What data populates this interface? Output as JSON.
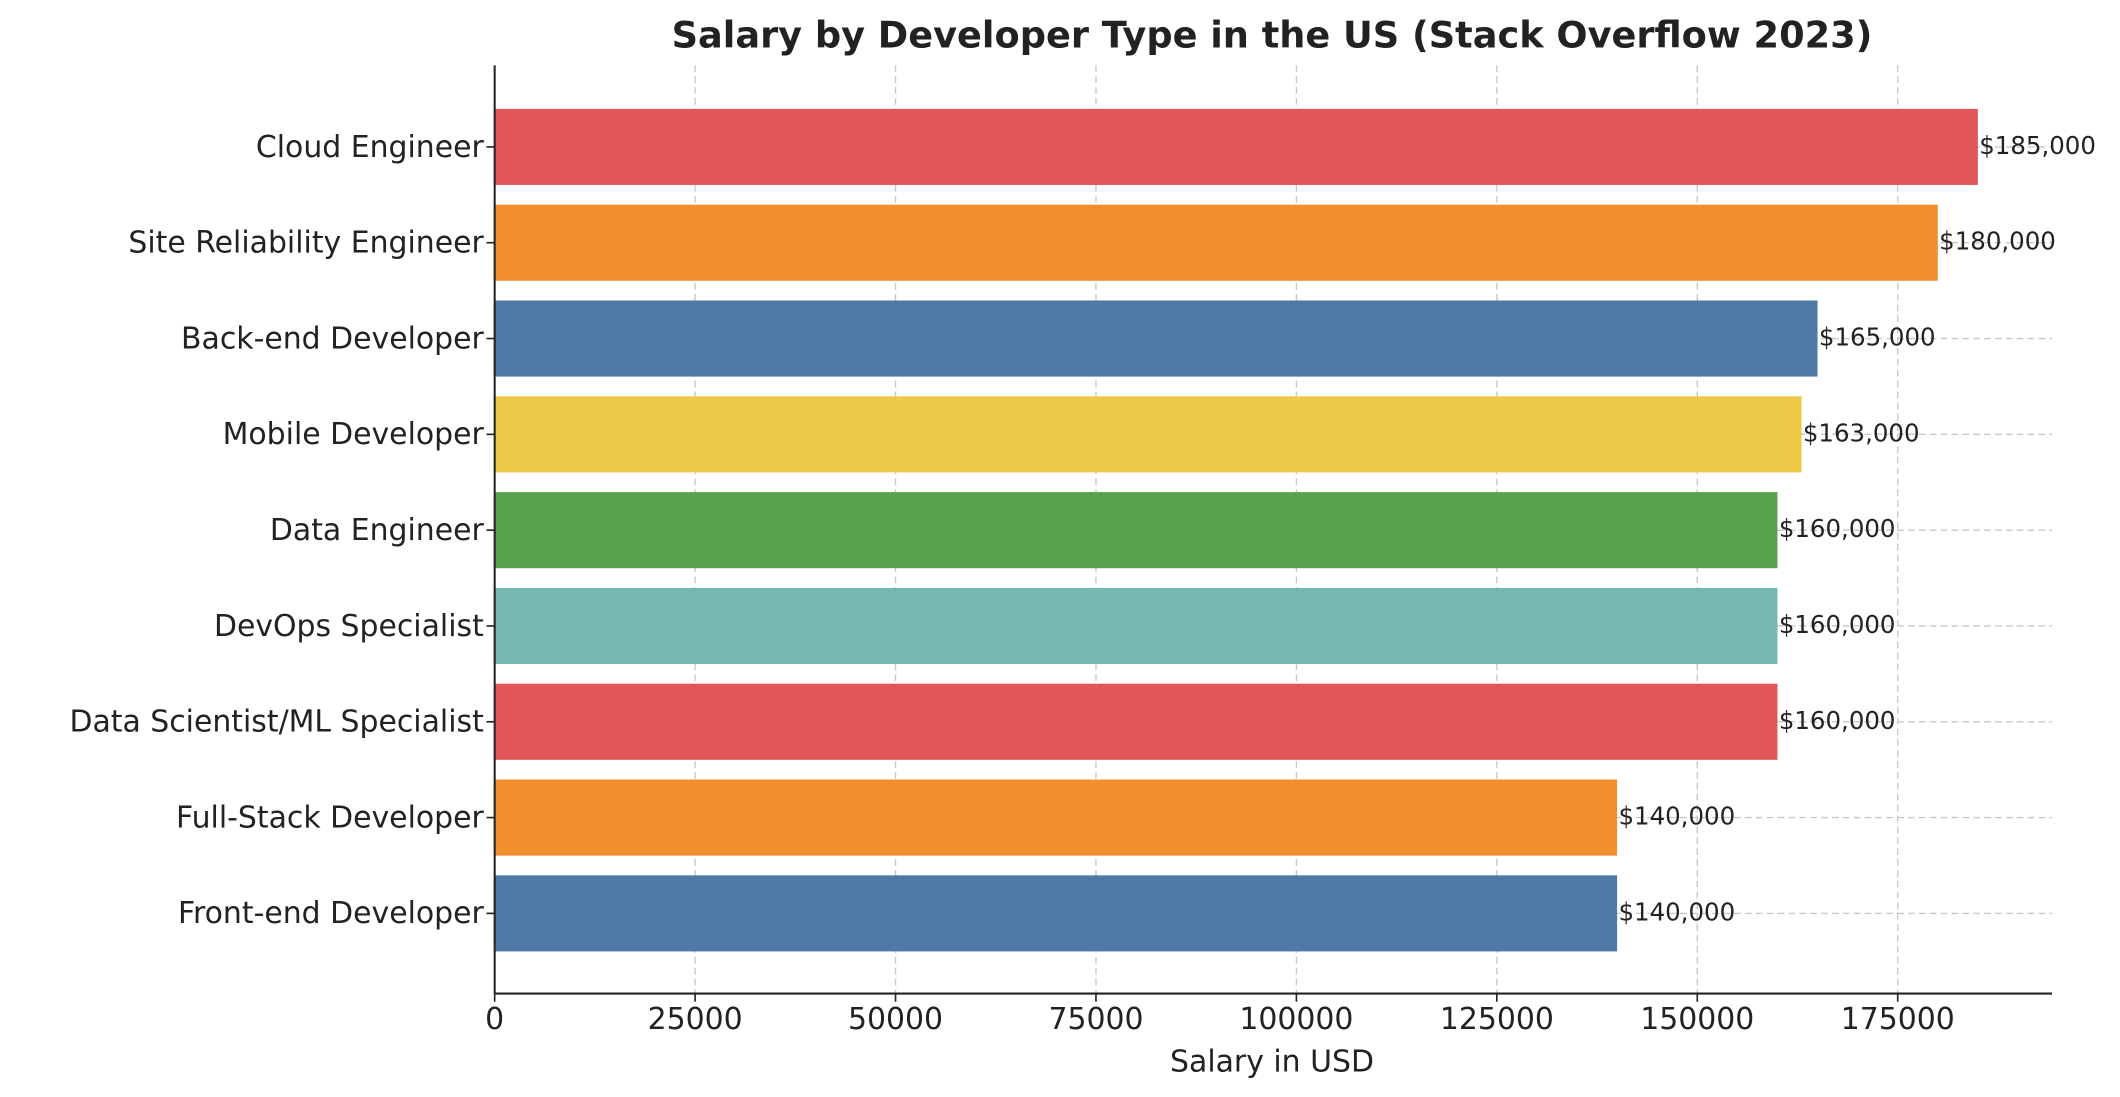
{
  "chart_data": {
    "type": "bar",
    "orientation": "horizontal",
    "title": "Salary by Developer Type in the US (Stack Overflow 2023)",
    "xlabel": "Salary in USD",
    "categories": [
      "Cloud Engineer",
      "Site Reliability Engineer",
      "Back-end Developer",
      "Mobile Developer",
      "Data Engineer",
      "DevOps Specialist",
      "Data Scientist/ML Specialist",
      "Full-Stack Developer",
      "Front-end Developer"
    ],
    "values": [
      185000,
      180000,
      165000,
      163000,
      160000,
      160000,
      160000,
      140000,
      140000
    ],
    "value_labels": [
      "$185,000",
      "$180,000",
      "$165,000",
      "$163,000",
      "$160,000",
      "$160,000",
      "$160,000",
      "$140,000",
      "$140,000"
    ],
    "colors": [
      "#e15759",
      "#f28e2b",
      "#4e79a7",
      "#edc948",
      "#59a14f",
      "#76b7b2",
      "#e15759",
      "#f28e2b",
      "#4e79a7"
    ],
    "xlim": [
      0,
      194250
    ],
    "xticks": [
      0,
      25000,
      50000,
      75000,
      100000,
      125000,
      150000,
      175000
    ],
    "grid": true
  }
}
